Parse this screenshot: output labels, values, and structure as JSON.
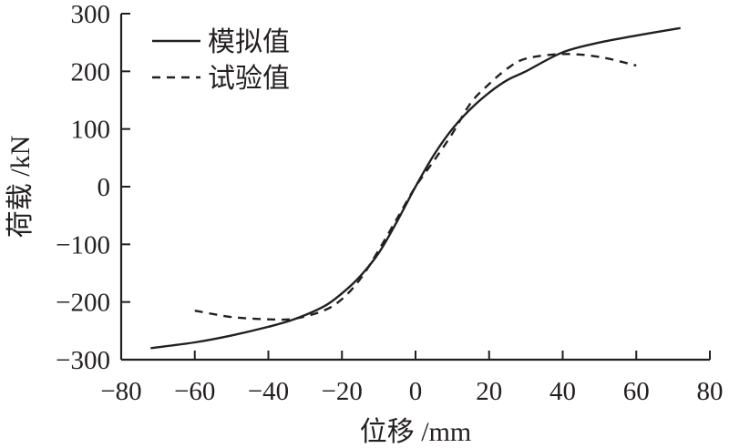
{
  "chart_data": {
    "type": "line",
    "title": "",
    "xlabel": "位移 /mm",
    "ylabel": "荷载 /kN",
    "xlim": [
      -80,
      80
    ],
    "ylim": [
      -300,
      300
    ],
    "xticks": [
      -80,
      -60,
      -40,
      -20,
      0,
      20,
      40,
      60,
      80
    ],
    "yticks": [
      -300,
      -200,
      -100,
      0,
      100,
      200,
      300
    ],
    "xtick_labels": [
      "−80",
      "−60",
      "−40",
      "−20",
      "0",
      "20",
      "40",
      "60",
      "80"
    ],
    "ytick_labels": [
      "−300",
      "−200",
      "−100",
      "0",
      "100",
      "200",
      "300"
    ],
    "grid": false,
    "legend_position": "top-left",
    "series": [
      {
        "name": "模拟值",
        "style": "solid",
        "color": "#231f20",
        "x": [
          -72,
          -60,
          -50,
          -40,
          -33,
          -25,
          -20,
          -15,
          -10,
          -5,
          0,
          5,
          10,
          15,
          20,
          25,
          30,
          40,
          50,
          60,
          72
        ],
        "y": [
          -280,
          -270,
          -258,
          -243,
          -230,
          -208,
          -185,
          -155,
          -115,
          -60,
          0,
          55,
          100,
          135,
          163,
          185,
          200,
          233,
          250,
          262,
          275
        ]
      },
      {
        "name": "试验值",
        "style": "dashed",
        "color": "#231f20",
        "x": [
          -60,
          -50,
          -40,
          -33,
          -25,
          -20,
          -15,
          -10,
          -5,
          0,
          5,
          10,
          15,
          20,
          25,
          30,
          40,
          50,
          60
        ],
        "y": [
          -215,
          -226,
          -230,
          -229,
          -215,
          -195,
          -160,
          -110,
          -55,
          0,
          45,
          92,
          145,
          178,
          205,
          222,
          230,
          225,
          210
        ]
      }
    ]
  }
}
